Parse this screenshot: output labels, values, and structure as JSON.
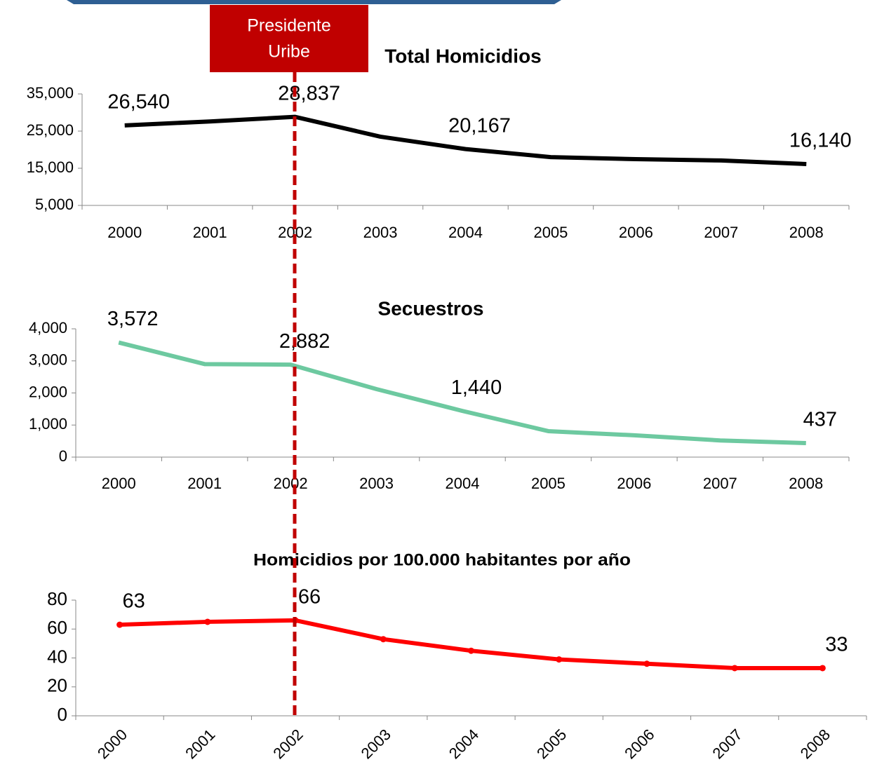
{
  "annotation": {
    "lines": [
      "Presidente",
      "Uribe"
    ]
  },
  "chart_data": [
    {
      "type": "line",
      "title": "Total Homicidios",
      "categories": [
        "2000",
        "2001",
        "2002",
        "2003",
        "2004",
        "2005",
        "2006",
        "2007",
        "2008"
      ],
      "series": [
        {
          "name": "Total Homicidios",
          "color": "#000000",
          "values": [
            26540,
            27600,
            28837,
            23500,
            20167,
            18000,
            17450,
            17100,
            16140
          ],
          "value_labels": [
            "26,540",
            null,
            "28,837",
            null,
            "20,167",
            null,
            null,
            null,
            "16,140"
          ]
        }
      ],
      "ylim": [
        5000,
        35000
      ],
      "yticks": [
        {
          "value": 5000,
          "label": "5,000"
        },
        {
          "value": 15000,
          "label": "15,000"
        },
        {
          "value": 25000,
          "label": "25,000"
        },
        {
          "value": 35000,
          "label": "35,000"
        }
      ]
    },
    {
      "type": "line",
      "title": "Secuestros",
      "categories": [
        "2000",
        "2001",
        "2002",
        "2003",
        "2004",
        "2005",
        "2006",
        "2007",
        "2008"
      ],
      "series": [
        {
          "name": "Secuestros",
          "color": "#6dc9a0",
          "values": [
            3572,
            2900,
            2882,
            2120,
            1440,
            810,
            680,
            520,
            437
          ],
          "value_labels": [
            "3,572",
            null,
            "2,882",
            null,
            "1,440",
            null,
            null,
            null,
            "437"
          ]
        }
      ],
      "ylim": [
        0,
        4000
      ],
      "yticks": [
        0,
        {
          "value": 1000,
          "label": "1,000"
        },
        {
          "value": 2000,
          "label": "2,000"
        },
        {
          "value": 3000,
          "label": "3,000"
        },
        {
          "value": 4000,
          "label": "4,000"
        }
      ]
    },
    {
      "type": "line",
      "title": "Homicidios por 100.000 habitantes por año",
      "categories": [
        "2000",
        "2001",
        "2002",
        "2003",
        "2004",
        "2005",
        "2006",
        "2007",
        "2008"
      ],
      "series": [
        {
          "name": "Homicidios por 100.000 habitantes",
          "color": "#ff0000",
          "values": [
            63,
            65,
            66,
            53,
            45,
            39,
            36,
            33,
            33
          ],
          "value_labels": [
            "63",
            null,
            "66",
            null,
            null,
            null,
            null,
            null,
            "33"
          ]
        }
      ],
      "ylim": [
        0,
        80
      ],
      "yticks": [
        0,
        20,
        40,
        60,
        80
      ]
    }
  ]
}
